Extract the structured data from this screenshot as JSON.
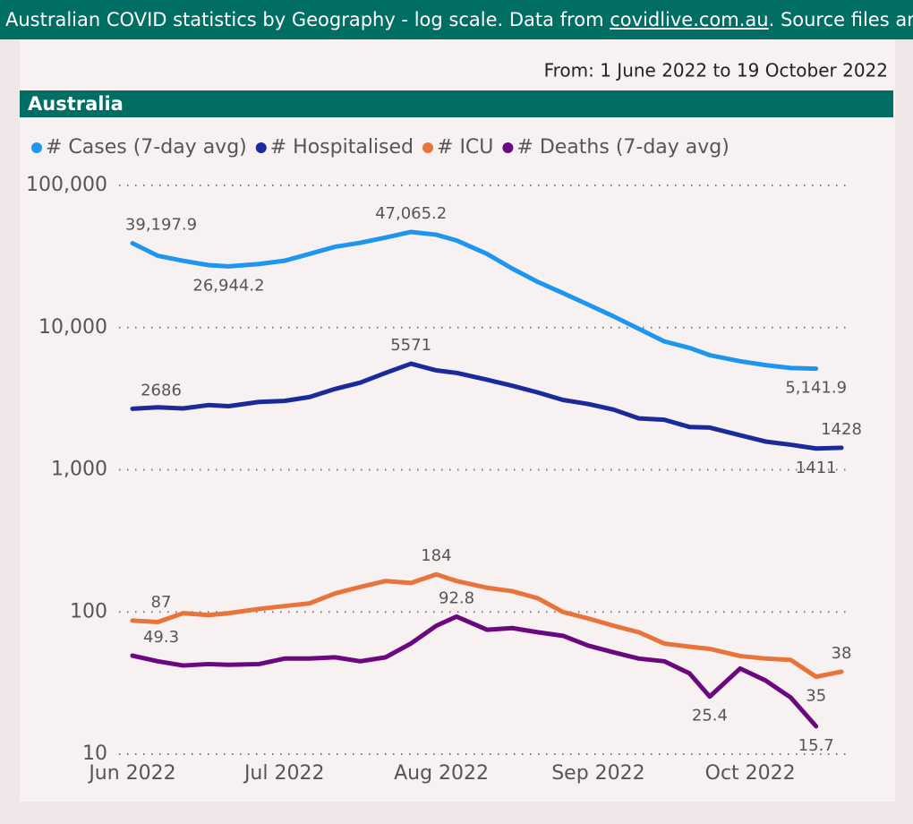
{
  "header": {
    "title_prefix": "Australian COVID statistics by Geography - log scale. Data from ",
    "link": "covidlive.com.au",
    "title_suffix": ". Source files and more"
  },
  "chart_data": {
    "type": "line",
    "title": "Australia",
    "subtitle": "From: 1 June 2022 to 19 October 2022",
    "log_scale": true,
    "grid": true,
    "legend": "top-left",
    "x": [
      0,
      5,
      10,
      15,
      19,
      25,
      30,
      35,
      40,
      45,
      50,
      55,
      60,
      64,
      70,
      75,
      80,
      85,
      90,
      95,
      100,
      105,
      110,
      114,
      120,
      125,
      130,
      135,
      140
    ],
    "xlim": [
      0,
      140
    ],
    "xticks": [
      {
        "value": 0,
        "label": "Jun 2022"
      },
      {
        "value": 30,
        "label": "Jul 2022"
      },
      {
        "value": 61,
        "label": "Aug 2022"
      },
      {
        "value": 92,
        "label": "Sep 2022"
      },
      {
        "value": 122,
        "label": "Oct 2022"
      }
    ],
    "ylim": [
      10,
      100000
    ],
    "yticks": [
      10,
      100,
      {
        "value": 1000,
        "label": "1,000"
      },
      {
        "value": 10000,
        "label": "10,000"
      },
      {
        "value": 100000,
        "label": "100,000"
      }
    ],
    "series": [
      {
        "name": "# Cases (7-day avg)",
        "color": "#1e96f0",
        "values": [
          39197.9,
          32000,
          29500,
          27500,
          26944.2,
          28000,
          29500,
          33000,
          37000,
          39500,
          43000,
          47065.2,
          45000,
          41000,
          33000,
          26000,
          21000,
          17500,
          14500,
          12000,
          9800,
          8000,
          7200,
          6400,
          5800,
          5450,
          5200,
          5141.9,
          null
        ],
        "value_labels": [
          "39,197.9",
          null,
          null,
          null,
          "26,944.2",
          null,
          null,
          null,
          null,
          null,
          null,
          "47,065.2",
          null,
          null,
          null,
          null,
          null,
          null,
          null,
          null,
          null,
          null,
          null,
          null,
          null,
          null,
          null,
          "5,141.9",
          null
        ]
      },
      {
        "name": "# Hospitalised",
        "color": "#1a2a9a",
        "values": [
          2686,
          2750,
          2700,
          2850,
          2800,
          3000,
          3050,
          3250,
          3700,
          4100,
          4800,
          5571,
          5000,
          4800,
          4300,
          3900,
          3500,
          3100,
          2900,
          2650,
          2300,
          2250,
          2000,
          1980,
          1750,
          1580,
          1500,
          1411,
          1428
        ],
        "value_labels": [
          "2686",
          null,
          null,
          null,
          null,
          null,
          null,
          null,
          null,
          null,
          null,
          "5571",
          null,
          null,
          null,
          null,
          null,
          null,
          null,
          null,
          null,
          null,
          null,
          null,
          null,
          null,
          null,
          "1411",
          "1428"
        ]
      },
      {
        "name": "# ICU",
        "color": "#e8743b",
        "values": [
          87,
          85,
          98,
          95,
          98,
          105,
          110,
          115,
          135,
          150,
          165,
          160,
          184,
          165,
          148,
          140,
          125,
          100,
          90,
          80,
          72,
          60,
          57,
          55,
          49,
          47,
          46,
          35,
          38
        ],
        "value_labels": [
          "87",
          null,
          null,
          null,
          null,
          null,
          null,
          null,
          null,
          null,
          null,
          null,
          "184",
          null,
          null,
          null,
          null,
          null,
          null,
          null,
          null,
          null,
          null,
          null,
          null,
          null,
          null,
          "35",
          "38"
        ]
      },
      {
        "name": "# Deaths (7-day avg)",
        "color": "#6b087f",
        "values": [
          49.3,
          45,
          42,
          43,
          42.5,
          43,
          47,
          47,
          48,
          45,
          48,
          60,
          80,
          92.8,
          75,
          77,
          72,
          68,
          58,
          52,
          47,
          45,
          37,
          25.4,
          40,
          33,
          25,
          15.7,
          null
        ],
        "value_labels": [
          "49.3",
          null,
          null,
          null,
          null,
          null,
          null,
          null,
          null,
          null,
          null,
          null,
          null,
          "92.8",
          null,
          null,
          null,
          null,
          null,
          null,
          null,
          null,
          null,
          "25.4",
          null,
          null,
          null,
          "15.7",
          null
        ]
      }
    ]
  }
}
